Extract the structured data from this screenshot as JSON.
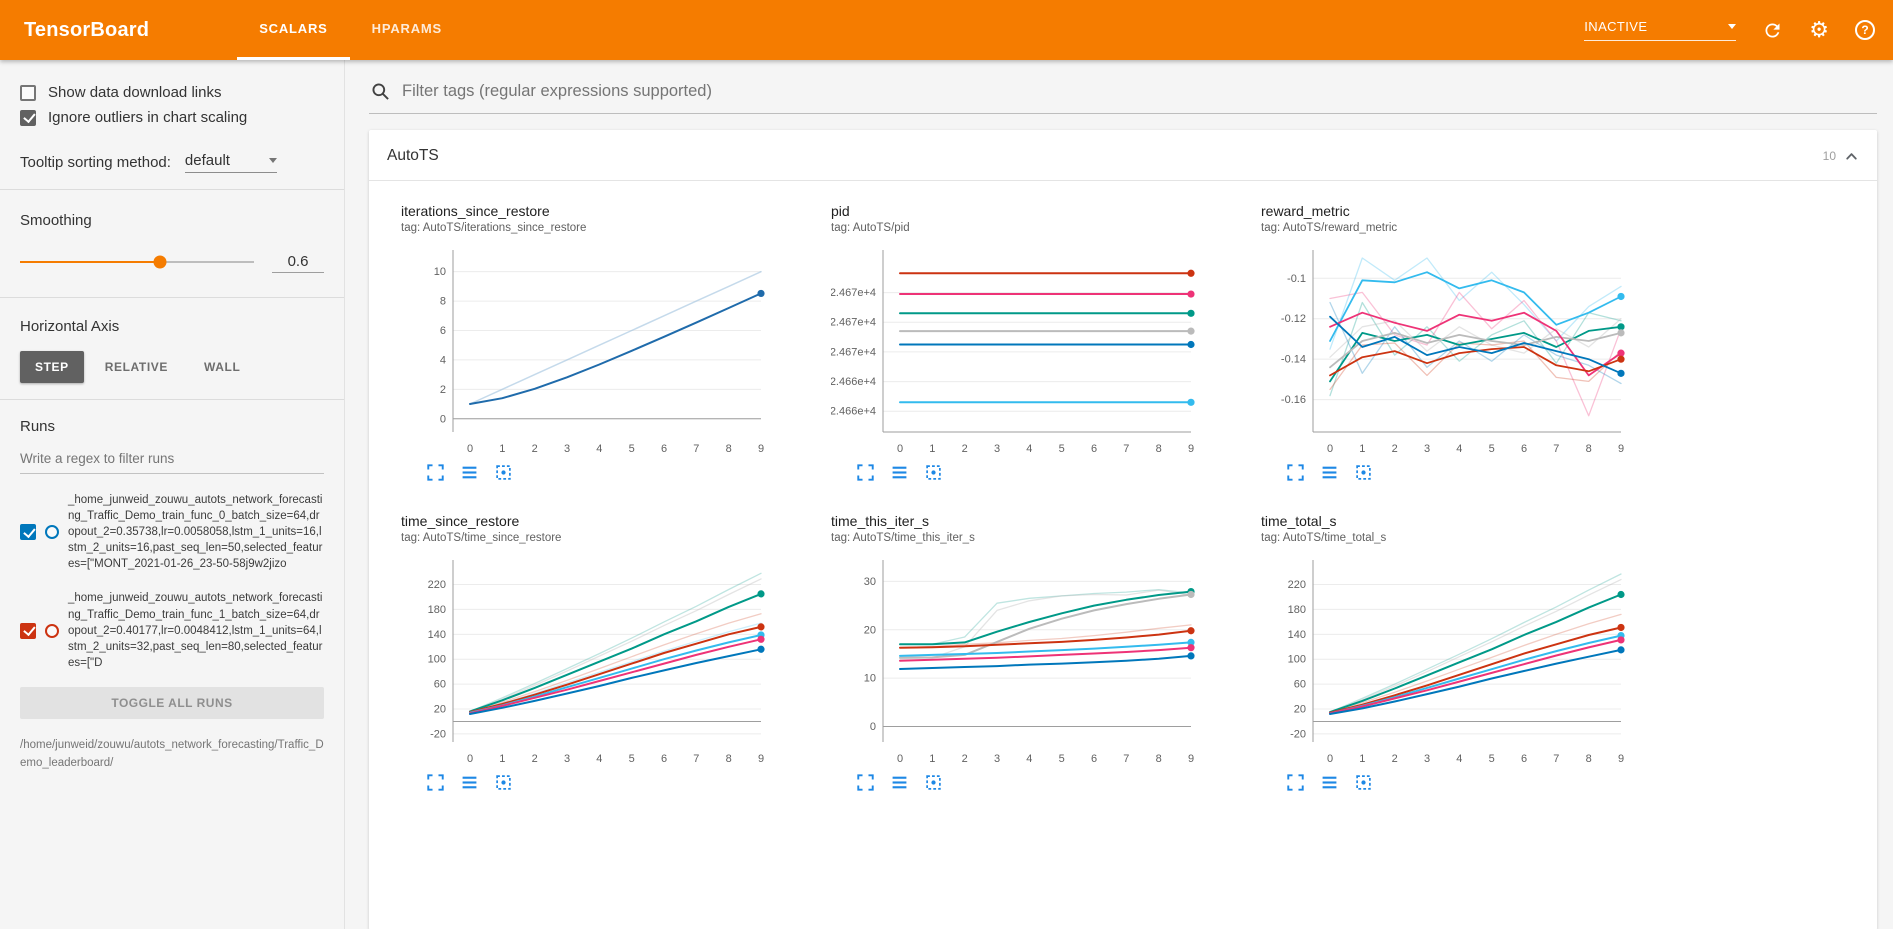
{
  "topbar": {
    "title": "TensorBoard",
    "tabs": [
      {
        "label": "SCALARS",
        "active": true
      },
      {
        "label": "HPARAMS",
        "active": false
      }
    ],
    "status_dropdown": "INACTIVE",
    "icons": [
      "refresh-icon",
      "settings-gear-icon",
      "help-icon"
    ]
  },
  "sidebar": {
    "show_download_links": {
      "label": "Show data download links",
      "checked": false
    },
    "ignore_outliers": {
      "label": "Ignore outliers in chart scaling",
      "checked": true
    },
    "tooltip_sorting": {
      "label": "Tooltip sorting method:",
      "value": "default"
    },
    "smoothing": {
      "label": "Smoothing",
      "value": "0.6",
      "percent": "60%"
    },
    "horizontal_axis": {
      "label": "Horizontal Axis",
      "options": [
        {
          "label": "STEP",
          "selected": true
        },
        {
          "label": "RELATIVE",
          "selected": false
        },
        {
          "label": "WALL",
          "selected": false
        }
      ]
    },
    "runs": {
      "label": "Runs",
      "filter_placeholder": "Write a regex to filter runs",
      "items": [
        {
          "name": "_home_junweid_zouwu_autots_network_forecasting_Traffic_Demo_train_func_0_batch_size=64,dropout_2=0.35738,lr=0.0058058,lstm_1_units=16,lstm_2_units=16,past_seq_len=50,selected_features=[\"MONT_2021-01-26_23-50-58j9w2jizo",
          "checked": true,
          "color": "#0077bb"
        },
        {
          "name": "_home_junweid_zouwu_autots_network_forecasting_Traffic_Demo_train_func_1_batch_size=64,dropout_2=0.40177,lr=0.0048412,lstm_1_units=64,lstm_2_units=32,past_seq_len=80,selected_features=[\"D",
          "checked": true,
          "color": "#cc3311"
        }
      ],
      "toggle_all_label": "TOGGLE ALL RUNS",
      "path": "/home/junweid/zouwu/autots_network_forecasting/Traffic_Demo_leaderboard/"
    }
  },
  "main": {
    "filter_placeholder": "Filter tags (regular expressions supported)",
    "card": {
      "title": "AutoTS",
      "count": "10"
    }
  },
  "chart_icons": [
    "fullscreen-icon",
    "data-lines-icon",
    "fit-domain-icon"
  ],
  "accent_colors": {
    "orange": "#f57c00",
    "chart_icon_blue": "#1e88e5"
  },
  "chart_data": [
    {
      "type": "line",
      "title": "iterations_since_restore",
      "tag": "tag: AutoTS/iterations_since_restore",
      "x": [
        0,
        1,
        2,
        3,
        4,
        5,
        6,
        7,
        8,
        9
      ],
      "xticks": [
        0,
        1,
        2,
        3,
        4,
        5,
        6,
        7,
        8,
        9
      ],
      "ylim": [
        -0.9,
        11.2
      ],
      "yticks": [
        0,
        2,
        4,
        6,
        8,
        10
      ],
      "ytick_labels": [
        "0",
        "2",
        "4",
        "6",
        "8",
        "10"
      ],
      "series": [
        {
          "name": "raw",
          "color": "#9fc2dd",
          "opacity": 0.6,
          "width": 1.5,
          "values": [
            1,
            2,
            3,
            4,
            5,
            6,
            7,
            8,
            9,
            10
          ]
        },
        {
          "name": "smoothed",
          "color": "#1f6bab",
          "opacity": 1,
          "width": 2,
          "dot": true,
          "values": [
            1,
            1.4,
            2.04,
            2.82,
            3.69,
            4.62,
            5.57,
            6.54,
            7.53,
            8.52
          ]
        }
      ]
    },
    {
      "type": "line",
      "title": "pid",
      "tag": "tag: AutoTS/pid",
      "x": [
        0,
        1,
        2,
        3,
        4,
        5,
        6,
        7,
        8,
        9
      ],
      "xticks": [
        0,
        1,
        2,
        3,
        4,
        5,
        6,
        7,
        8,
        9
      ],
      "ylim": [
        24660.6,
        24672.6
      ],
      "yticks": [
        24670,
        24668,
        24666,
        24664,
        24662
      ],
      "ytick_labels": [
        "2.467e+4",
        "2.467e+4",
        "2.467e+4",
        "2.466e+4",
        "2.466e+4"
      ],
      "series": [
        {
          "color": "#cc3311",
          "width": 2,
          "dot": true,
          "const": 24671.3
        },
        {
          "color": "#ee3377",
          "width": 2,
          "dot": true,
          "const": 24669.9
        },
        {
          "color": "#009988",
          "width": 2,
          "dot": true,
          "const": 24668.6
        },
        {
          "color": "#bbbbbb",
          "width": 2,
          "dot": true,
          "const": 24667.4
        },
        {
          "color": "#0077bb",
          "width": 2,
          "dot": true,
          "const": 24666.5
        },
        {
          "color": "#33bbee",
          "width": 2,
          "dot": true,
          "const": 24662.6
        }
      ]
    },
    {
      "type": "line",
      "title": "reward_metric",
      "tag": "tag: AutoTS/reward_metric",
      "x": [
        0,
        1,
        2,
        3,
        4,
        5,
        6,
        7,
        8,
        9
      ],
      "xticks": [
        0,
        1,
        2,
        3,
        4,
        5,
        6,
        7,
        8,
        9
      ],
      "ylim": [
        -0.176,
        -0.088
      ],
      "yticks": [
        -0.16,
        -0.14,
        -0.12,
        -0.1
      ],
      "ytick_labels": [
        "-0.16",
        "-0.14",
        "-0.12",
        "-0.1"
      ],
      "series": [
        {
          "color": "#33bbee",
          "opacity": 0.3,
          "width": 1.3,
          "values": [
            -0.135,
            -0.09,
            -0.101,
            -0.09,
            -0.111,
            -0.097,
            -0.113,
            -0.131,
            -0.114,
            -0.104
          ]
        },
        {
          "color": "#009988",
          "opacity": 0.3,
          "width": 1.3,
          "values": [
            -0.158,
            -0.112,
            -0.138,
            -0.124,
            -0.141,
            -0.128,
            -0.121,
            -0.142,
            -0.117,
            -0.121
          ]
        },
        {
          "color": "#ee3377",
          "opacity": 0.3,
          "width": 1.3,
          "values": [
            -0.11,
            -0.107,
            -0.128,
            -0.133,
            -0.107,
            -0.125,
            -0.111,
            -0.131,
            -0.168,
            -0.125
          ]
        },
        {
          "color": "#bbbbbb",
          "opacity": 0.4,
          "width": 1.3,
          "values": [
            -0.139,
            -0.124,
            -0.121,
            -0.136,
            -0.124,
            -0.133,
            -0.137,
            -0.125,
            -0.134,
            -0.12
          ]
        },
        {
          "color": "#cc3311",
          "opacity": 0.3,
          "width": 1.3,
          "values": [
            -0.155,
            -0.133,
            -0.132,
            -0.148,
            -0.132,
            -0.133,
            -0.131,
            -0.149,
            -0.151,
            -0.136
          ]
        },
        {
          "color": "#0077bb",
          "opacity": 0.3,
          "width": 1.3,
          "values": [
            -0.112,
            -0.147,
            -0.124,
            -0.144,
            -0.131,
            -0.141,
            -0.128,
            -0.138,
            -0.143,
            -0.152
          ]
        },
        {
          "color": "#33bbee",
          "width": 1.8,
          "dot": true,
          "values": [
            -0.131,
            -0.101,
            -0.102,
            -0.097,
            -0.105,
            -0.101,
            -0.107,
            -0.123,
            -0.117,
            -0.109
          ]
        },
        {
          "color": "#009988",
          "width": 1.8,
          "dot": true,
          "values": [
            -0.151,
            -0.127,
            -0.131,
            -0.128,
            -0.133,
            -0.13,
            -0.127,
            -0.134,
            -0.126,
            -0.124
          ]
        },
        {
          "color": "#bbbbbb",
          "width": 1.8,
          "dot": true,
          "values": [
            -0.144,
            -0.131,
            -0.127,
            -0.132,
            -0.128,
            -0.131,
            -0.133,
            -0.129,
            -0.131,
            -0.127
          ]
        },
        {
          "color": "#ee3377",
          "width": 1.8,
          "dot": true,
          "values": [
            -0.124,
            -0.117,
            -0.122,
            -0.126,
            -0.118,
            -0.121,
            -0.117,
            -0.126,
            -0.148,
            -0.137
          ]
        },
        {
          "color": "#cc3311",
          "width": 1.8,
          "dot": true,
          "values": [
            -0.148,
            -0.139,
            -0.136,
            -0.142,
            -0.137,
            -0.135,
            -0.134,
            -0.143,
            -0.146,
            -0.14
          ]
        },
        {
          "color": "#0077bb",
          "width": 1.8,
          "dot": true,
          "values": [
            -0.119,
            -0.134,
            -0.129,
            -0.138,
            -0.134,
            -0.137,
            -0.132,
            -0.136,
            -0.14,
            -0.147
          ]
        }
      ]
    },
    {
      "type": "line",
      "title": "time_since_restore",
      "tag": "tag: AutoTS/time_since_restore",
      "x": [
        0,
        1,
        2,
        3,
        4,
        5,
        6,
        7,
        8,
        9
      ],
      "xticks": [
        0,
        1,
        2,
        3,
        4,
        5,
        6,
        7,
        8,
        9
      ],
      "ylim": [
        -33,
        253
      ],
      "yticks": [
        -20,
        20,
        60,
        100,
        140,
        180,
        220
      ],
      "ytick_labels": [
        "-20",
        "20",
        "60",
        "100",
        "140",
        "180",
        "220"
      ],
      "series": [
        {
          "color": "#009988",
          "opacity": 0.25,
          "width": 1.3,
          "values": [
            16,
            38,
            61,
            85,
            109,
            134,
            160,
            185,
            212,
            238
          ]
        },
        {
          "color": "#bbbbbb",
          "opacity": 0.4,
          "width": 1.3,
          "values": [
            15,
            36,
            58,
            81,
            105,
            129,
            154,
            178,
            204,
            229
          ]
        },
        {
          "color": "#cc3311",
          "opacity": 0.25,
          "width": 1.3,
          "values": [
            15,
            31,
            48,
            66,
            85,
            104,
            123,
            141,
            158,
            173
          ]
        },
        {
          "color": "#33bbee",
          "opacity": 0.25,
          "width": 1.3,
          "values": [
            14,
            29,
            45,
            62,
            79,
            96,
            113,
            129,
            144,
            158
          ]
        },
        {
          "color": "#009988",
          "width": 2,
          "dot": true,
          "values": [
            16,
            34,
            54,
            75,
            96,
            117,
            140,
            161,
            184,
            205
          ]
        },
        {
          "color": "#cc3311",
          "width": 2,
          "dot": true,
          "values": [
            15,
            28,
            43,
            59,
            76,
            93,
            110,
            125,
            140,
            152
          ]
        },
        {
          "color": "#33bbee",
          "width": 2,
          "dot": true,
          "values": [
            14,
            26,
            40,
            55,
            70,
            85,
            100,
            114,
            127,
            139
          ]
        },
        {
          "color": "#ee3377",
          "width": 2,
          "dot": true,
          "values": [
            13,
            25,
            38,
            51,
            65,
            79,
            93,
            107,
            120,
            132
          ]
        },
        {
          "color": "#0077bb",
          "width": 2,
          "dot": true,
          "values": [
            12,
            22,
            33,
            45,
            57,
            70,
            82,
            94,
            105,
            116
          ]
        }
      ]
    },
    {
      "type": "line",
      "title": "time_this_iter_s",
      "tag": "tag: AutoTS/time_this_iter_s",
      "x": [
        0,
        1,
        2,
        3,
        4,
        5,
        6,
        7,
        8,
        9
      ],
      "xticks": [
        0,
        1,
        2,
        3,
        4,
        5,
        6,
        7,
        8,
        9
      ],
      "ylim": [
        -3.2,
        33.6
      ],
      "yticks": [
        0,
        10,
        20,
        30
      ],
      "ytick_labels": [
        "0",
        "10",
        "20",
        "30"
      ],
      "series": [
        {
          "color": "#009988",
          "opacity": 0.25,
          "width": 1.3,
          "values": [
            17,
            17,
            18.5,
            25.5,
            26.5,
            27,
            27.5,
            27.8,
            28.3,
            27.6
          ]
        },
        {
          "color": "#bbbbbb",
          "opacity": 0.4,
          "width": 1.3,
          "values": [
            14,
            14.2,
            16.5,
            24,
            26,
            27,
            27.3,
            27.2,
            28.2,
            27.2
          ]
        },
        {
          "color": "#cc3311",
          "opacity": 0.25,
          "width": 1.3,
          "values": [
            16.3,
            16.5,
            17,
            17.3,
            17.8,
            18.2,
            18.8,
            19.5,
            20.3,
            21
          ]
        },
        {
          "color": "#009988",
          "width": 2,
          "dot": true,
          "values": [
            17,
            17,
            17.4,
            19.6,
            21.6,
            23.4,
            25,
            26.2,
            27.2,
            27.9
          ]
        },
        {
          "color": "#bbbbbb",
          "width": 2,
          "dot": true,
          "values": [
            14.2,
            14.3,
            14.8,
            17.5,
            20.2,
            22.3,
            24,
            25.3,
            26.4,
            27.3
          ]
        },
        {
          "color": "#cc3311",
          "width": 2,
          "dot": true,
          "values": [
            16.3,
            16.4,
            16.6,
            16.9,
            17.2,
            17.5,
            17.9,
            18.4,
            19,
            19.8
          ]
        },
        {
          "color": "#33bbee",
          "width": 2,
          "dot": true,
          "values": [
            14.6,
            14.8,
            15,
            15.2,
            15.5,
            15.8,
            16.1,
            16.5,
            16.9,
            17.4
          ]
        },
        {
          "color": "#ee3377",
          "width": 2,
          "dot": true,
          "values": [
            13.6,
            13.8,
            14,
            14.2,
            14.5,
            14.8,
            15.1,
            15.4,
            15.8,
            16.3
          ]
        },
        {
          "color": "#0077bb",
          "width": 2,
          "dot": true,
          "values": [
            11.9,
            12.1,
            12.3,
            12.5,
            12.8,
            13,
            13.3,
            13.6,
            14,
            14.6
          ]
        }
      ]
    },
    {
      "type": "line",
      "title": "time_total_s",
      "tag": "tag: AutoTS/time_total_s",
      "x": [
        0,
        1,
        2,
        3,
        4,
        5,
        6,
        7,
        8,
        9
      ],
      "xticks": [
        0,
        1,
        2,
        3,
        4,
        5,
        6,
        7,
        8,
        9
      ],
      "ylim": [
        -33,
        253
      ],
      "yticks": [
        -20,
        20,
        60,
        100,
        140,
        180,
        220
      ],
      "ytick_labels": [
        "-20",
        "20",
        "60",
        "100",
        "140",
        "180",
        "220"
      ],
      "series": [
        {
          "color": "#009988",
          "opacity": 0.25,
          "width": 1.3,
          "values": [
            15,
            37,
            60,
            84,
            108,
            133,
            159,
            184,
            211,
            237
          ]
        },
        {
          "color": "#bbbbbb",
          "opacity": 0.4,
          "width": 1.3,
          "values": [
            14,
            35,
            57,
            80,
            104,
            128,
            153,
            177,
            203,
            228
          ]
        },
        {
          "color": "#cc3311",
          "opacity": 0.25,
          "width": 1.3,
          "values": [
            14,
            30,
            47,
            65,
            84,
            103,
            122,
            140,
            157,
            172
          ]
        },
        {
          "color": "#009988",
          "width": 2,
          "dot": true,
          "values": [
            15,
            33,
            53,
            74,
            95,
            116,
            139,
            160,
            183,
            204
          ]
        },
        {
          "color": "#cc3311",
          "width": 2,
          "dot": true,
          "values": [
            14,
            27,
            42,
            58,
            75,
            92,
            109,
            124,
            139,
            151
          ]
        },
        {
          "color": "#33bbee",
          "width": 2,
          "dot": true,
          "values": [
            13,
            25,
            39,
            54,
            69,
            84,
            99,
            113,
            126,
            138
          ]
        },
        {
          "color": "#ee3377",
          "width": 2,
          "dot": true,
          "values": [
            13,
            24,
            37,
            50,
            64,
            78,
            92,
            106,
            119,
            131
          ]
        },
        {
          "color": "#0077bb",
          "width": 2,
          "dot": true,
          "values": [
            12,
            21,
            32,
            44,
            56,
            69,
            81,
            93,
            104,
            115
          ]
        }
      ]
    }
  ]
}
